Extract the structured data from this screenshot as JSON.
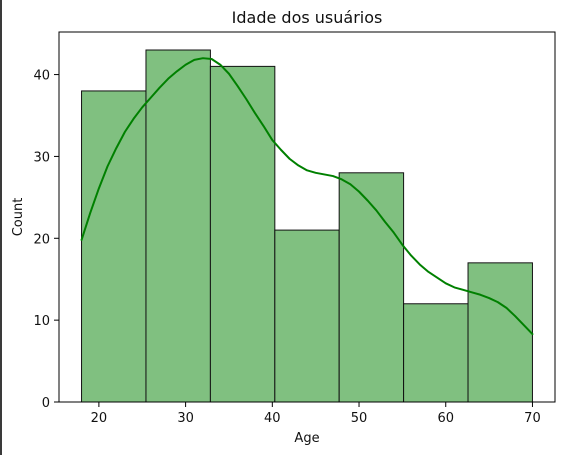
{
  "chart_data": {
    "type": "bar",
    "title": "Idade dos usuários",
    "xlabel": "Age",
    "ylabel": "Count",
    "xlim": [
      15.4,
      72.6
    ],
    "ylim": [
      0,
      45.2
    ],
    "x_ticks": [
      20,
      30,
      40,
      50,
      60,
      70
    ],
    "y_ticks": [
      0,
      10,
      20,
      30,
      40
    ],
    "bins": [
      {
        "x0": 18.0,
        "x1": 25.43,
        "count": 38
      },
      {
        "x0": 25.43,
        "x1": 32.86,
        "count": 43
      },
      {
        "x0": 32.86,
        "x1": 40.29,
        "count": 41
      },
      {
        "x0": 40.29,
        "x1": 47.71,
        "count": 21
      },
      {
        "x0": 47.71,
        "x1": 55.14,
        "count": 28
      },
      {
        "x0": 55.14,
        "x1": 62.57,
        "count": 12
      },
      {
        "x0": 62.57,
        "x1": 70.0,
        "count": 17
      }
    ],
    "kde": {
      "x": [
        18,
        19,
        20,
        21,
        22,
        23,
        24,
        25,
        26,
        27,
        28,
        29,
        30,
        31,
        32,
        33,
        34,
        35,
        36,
        37,
        38,
        39,
        40,
        41,
        42,
        43,
        44,
        45,
        46,
        47,
        48,
        49,
        50,
        51,
        52,
        53,
        54,
        55,
        56,
        57,
        58,
        59,
        60,
        61,
        62,
        63,
        64,
        65,
        66,
        67,
        68,
        69,
        70
      ],
      "y": [
        19.8,
        23.1,
        26.1,
        28.8,
        31.0,
        33.0,
        34.6,
        36.0,
        37.2,
        38.4,
        39.5,
        40.4,
        41.2,
        41.8,
        42.0,
        41.9,
        41.2,
        40.1,
        38.6,
        37.0,
        35.3,
        33.7,
        32.0,
        30.8,
        29.7,
        28.9,
        28.3,
        28.0,
        27.8,
        27.6,
        27.2,
        26.6,
        25.7,
        24.6,
        23.4,
        22.0,
        20.7,
        19.2,
        17.9,
        16.8,
        15.9,
        15.2,
        14.5,
        14.0,
        13.7,
        13.4,
        13.1,
        12.7,
        12.2,
        11.5,
        10.5,
        9.4,
        8.3
      ]
    },
    "colors": {
      "bar_fill": "#80c080",
      "bar_edge": "#111111",
      "kde_line": "#008000"
    },
    "grid": false,
    "legend": "none"
  }
}
